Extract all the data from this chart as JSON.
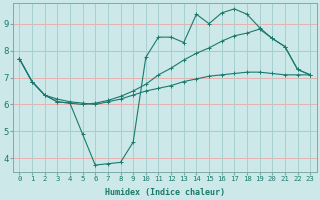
{
  "xlabel": "Humidex (Indice chaleur)",
  "bg_color": "#cce8e8",
  "grid_color_h": "#e8b0b0",
  "grid_color_v": "#a8d0d0",
  "line_color": "#1a7a6e",
  "xlim": [
    -0.5,
    23.5
  ],
  "ylim": [
    3.5,
    9.75
  ],
  "yticks": [
    4,
    5,
    6,
    7,
    8,
    9
  ],
  "xticks": [
    0,
    1,
    2,
    3,
    4,
    5,
    6,
    7,
    8,
    9,
    10,
    11,
    12,
    13,
    14,
    15,
    16,
    17,
    18,
    19,
    20,
    21,
    22,
    23
  ],
  "line1_x": [
    0,
    1,
    2,
    3,
    4,
    5,
    6,
    7,
    8,
    9,
    10,
    11,
    12,
    13,
    14,
    15,
    16,
    17,
    18,
    19,
    20,
    21,
    22,
    23
  ],
  "line1_y": [
    7.7,
    6.85,
    6.35,
    6.2,
    6.1,
    6.05,
    6.0,
    6.1,
    6.2,
    6.35,
    6.5,
    6.6,
    6.7,
    6.85,
    6.95,
    7.05,
    7.1,
    7.15,
    7.2,
    7.2,
    7.15,
    7.1,
    7.1,
    7.1
  ],
  "line2_x": [
    0,
    1,
    2,
    3,
    4,
    5,
    6,
    7,
    8,
    9,
    10,
    11,
    12,
    13,
    14,
    15,
    16,
    17,
    18,
    19,
    20,
    21,
    22,
    23
  ],
  "line2_y": [
    7.7,
    6.85,
    6.35,
    6.1,
    6.05,
    6.0,
    6.05,
    6.15,
    6.3,
    6.5,
    6.75,
    7.1,
    7.35,
    7.65,
    7.9,
    8.1,
    8.35,
    8.55,
    8.65,
    8.8,
    8.45,
    8.15,
    7.3,
    7.1
  ],
  "line3_x": [
    0,
    1,
    2,
    3,
    4,
    5,
    6,
    7,
    8,
    9,
    10,
    11,
    12,
    13,
    14,
    15,
    16,
    17,
    18,
    19,
    20,
    21,
    22,
    23
  ],
  "line3_y": [
    7.7,
    6.85,
    6.35,
    6.1,
    6.05,
    4.9,
    3.75,
    3.8,
    3.85,
    4.6,
    7.75,
    8.5,
    8.5,
    8.3,
    9.35,
    9.0,
    9.4,
    9.55,
    9.35,
    8.85,
    8.45,
    8.15,
    7.3,
    7.1
  ],
  "xlabel_fontsize": 6.0,
  "tick_fontsize_x": 5.2,
  "tick_fontsize_y": 6.5
}
